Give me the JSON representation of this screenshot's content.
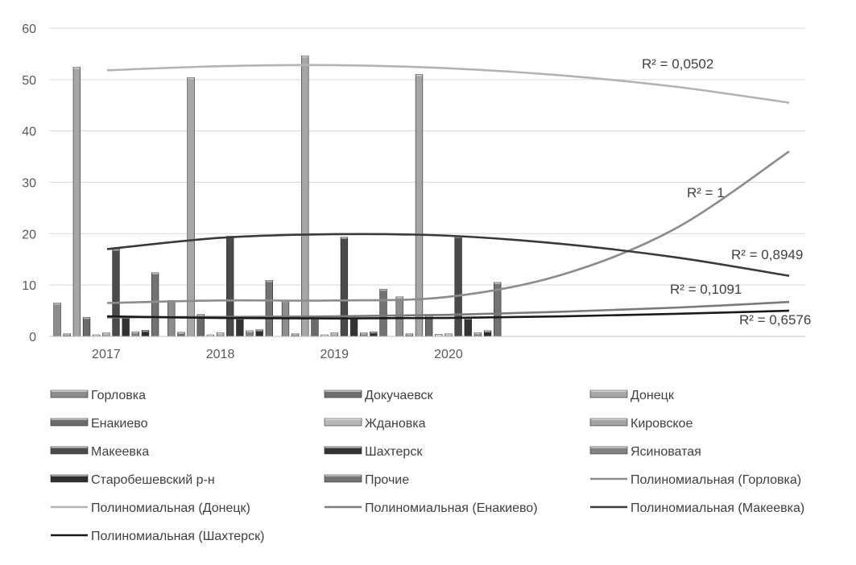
{
  "chart_data": {
    "type": "bar",
    "categories": [
      "2017",
      "2018",
      "2019",
      "2020"
    ],
    "ylim": [
      0,
      60
    ],
    "yticks": [
      0,
      10,
      20,
      30,
      40,
      50,
      60
    ],
    "grid": true,
    "legend_position": "bottom",
    "series": [
      {
        "name": "Горловка",
        "color": "#8c8c8c",
        "values": [
          6.5,
          7.0,
          7.0,
          7.7
        ]
      },
      {
        "name": "Докучаевск",
        "color": "#6e6e6e",
        "values": [
          0.5,
          0.8,
          0.5,
          0.5
        ]
      },
      {
        "name": "Донецк",
        "color": "#a6a6a6",
        "values": [
          52.4,
          50.4,
          54.6,
          51.0
        ]
      },
      {
        "name": "Енакиево",
        "color": "#6a6a6a",
        "values": [
          3.7,
          4.3,
          3.6,
          4.0
        ]
      },
      {
        "name": "Ждановка",
        "color": "#b8b8b8",
        "values": [
          0.3,
          0.3,
          0.3,
          0.4
        ]
      },
      {
        "name": "Кировское",
        "color": "#a3a3a3",
        "values": [
          0.7,
          0.7,
          0.7,
          0.5
        ]
      },
      {
        "name": "Макеевка",
        "color": "#4a4a4a",
        "values": [
          17.0,
          19.5,
          19.3,
          19.5
        ]
      },
      {
        "name": "Шахтерск",
        "color": "#333333",
        "values": [
          3.8,
          3.6,
          3.6,
          3.6
        ]
      },
      {
        "name": "Ясиноватая",
        "color": "#828282",
        "values": [
          0.9,
          1.1,
          0.7,
          0.7
        ]
      },
      {
        "name": "Старобешевский р-н",
        "color": "#2e2e2e",
        "values": [
          1.2,
          1.3,
          0.9,
          1.1
        ]
      },
      {
        "name": "Прочие",
        "color": "#737373",
        "values": [
          12.4,
          10.9,
          9.2,
          10.5
        ]
      }
    ],
    "trendlines": [
      {
        "name": "Полиномиальная (Горловка)",
        "color": "#8c8c8c",
        "r2": "R² = 1",
        "x": [
          1,
          2,
          3,
          4,
          5,
          6,
          7
        ],
        "y": [
          6.5,
          7.0,
          7.0,
          7.7,
          12.0,
          21.0,
          36.0
        ]
      },
      {
        "name": "Полиномиальная (Донецк)",
        "color": "#b3b3b3",
        "r2": "R² = 0,0502",
        "x": [
          1,
          2,
          3,
          4,
          5,
          6,
          7
        ],
        "y": [
          51.8,
          52.6,
          52.8,
          52.2,
          50.8,
          48.6,
          45.5
        ]
      },
      {
        "name": "Полиномиальная (Енакиево)",
        "color": "#7a7a7a",
        "r2": "R² = 0,1091",
        "x": [
          1,
          2,
          3,
          4,
          5,
          6,
          7
        ],
        "y": [
          3.7,
          3.8,
          3.9,
          4.2,
          4.8,
          5.6,
          6.7
        ]
      },
      {
        "name": "Полиномиальная (Макеевка)",
        "color": "#3a3a3a",
        "r2": "R² = 0,8949",
        "x": [
          1,
          2,
          3,
          4,
          5,
          6,
          7
        ],
        "y": [
          17.0,
          19.2,
          19.9,
          19.6,
          18.0,
          15.4,
          11.8
        ]
      },
      {
        "name": "Полиномиальная (Шахтерск)",
        "color": "#1a1a1a",
        "r2": "R² = 0,6576",
        "x": [
          1,
          2,
          3,
          4,
          5,
          6,
          7
        ],
        "y": [
          3.9,
          3.6,
          3.5,
          3.6,
          3.9,
          4.4,
          5.0
        ]
      }
    ]
  }
}
